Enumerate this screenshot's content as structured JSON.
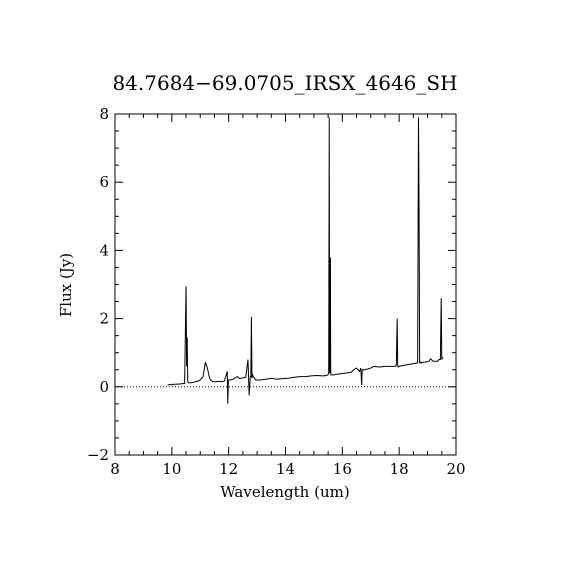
{
  "chart_data": {
    "type": "line",
    "title": "84.7684−69.0705_IRSX_4646_SH",
    "xlabel": "Wavelength (um)",
    "ylabel": "Flux (Jy)",
    "xlim": [
      8,
      20
    ],
    "ylim": [
      -2,
      8
    ],
    "x_ticks": [
      8,
      10,
      12,
      14,
      16,
      18,
      20
    ],
    "y_ticks": [
      -2,
      0,
      2,
      4,
      6,
      8
    ],
    "x_tick_labels": [
      "8",
      "10",
      "12",
      "14",
      "16",
      "18",
      "20"
    ],
    "y_tick_labels": [
      "−2",
      "0",
      "2",
      "4",
      "6",
      "8"
    ],
    "zero_line": true,
    "grid": false,
    "line_color": "#000000",
    "series": [
      {
        "x": [
          9.85,
          9.95,
          10.05,
          10.15,
          10.25,
          10.35,
          10.45,
          10.5,
          10.52,
          10.54,
          10.56,
          10.6,
          10.7,
          10.8,
          10.9,
          11.0,
          11.1,
          11.18,
          11.25,
          11.3,
          11.35,
          11.45,
          11.55,
          11.65,
          11.75,
          11.85,
          11.95,
          11.97,
          11.99,
          12.05,
          12.15,
          12.3,
          12.37,
          12.45,
          12.6,
          12.68,
          12.72,
          12.76,
          12.78,
          12.8,
          12.82,
          12.84,
          12.88,
          12.95,
          13.1,
          13.3,
          13.5,
          13.7,
          13.9,
          14.1,
          14.3,
          14.5,
          14.7,
          14.9,
          15.1,
          15.3,
          15.45,
          15.52,
          15.54,
          15.55,
          15.56,
          15.58,
          15.59,
          15.6,
          15.62,
          15.7,
          15.9,
          16.1,
          16.3,
          16.4,
          16.5,
          16.6,
          16.65,
          16.68,
          16.7,
          16.8,
          17.0,
          17.1,
          17.3,
          17.5,
          17.7,
          17.85,
          17.9,
          17.93,
          17.95,
          17.98,
          18.0,
          18.1,
          18.3,
          18.5,
          18.65,
          18.68,
          18.7,
          18.72,
          18.74,
          18.76,
          18.78,
          18.8,
          18.9,
          19.05,
          19.1,
          19.2,
          19.35,
          19.4,
          19.45,
          19.48,
          19.5,
          19.52,
          19.55
        ],
        "y": [
          0.05,
          0.07,
          0.07,
          0.08,
          0.08,
          0.09,
          0.1,
          2.95,
          0.6,
          1.45,
          0.15,
          0.12,
          0.12,
          0.14,
          0.16,
          0.2,
          0.3,
          0.72,
          0.55,
          0.35,
          0.2,
          0.15,
          0.15,
          0.16,
          0.15,
          0.17,
          0.45,
          -0.5,
          0.2,
          0.2,
          0.22,
          0.3,
          0.25,
          0.25,
          0.28,
          0.8,
          -0.25,
          0.3,
          0.3,
          2.05,
          0.25,
          0.35,
          0.28,
          0.2,
          0.2,
          0.22,
          0.25,
          0.22,
          0.24,
          0.25,
          0.28,
          0.3,
          0.3,
          0.32,
          0.33,
          0.32,
          0.33,
          0.38,
          7.9,
          0.55,
          0.4,
          3.8,
          0.45,
          0.35,
          0.35,
          0.35,
          0.38,
          0.4,
          0.42,
          0.5,
          0.55,
          0.45,
          0.55,
          0.05,
          0.5,
          0.5,
          0.55,
          0.6,
          0.58,
          0.6,
          0.6,
          0.6,
          0.62,
          2.0,
          0.6,
          0.58,
          0.6,
          0.62,
          0.65,
          0.68,
          0.7,
          7.9,
          5.3,
          0.7,
          0.7,
          0.72,
          0.7,
          0.72,
          0.72,
          0.75,
          0.82,
          0.75,
          0.75,
          0.8,
          0.8,
          2.6,
          0.8,
          0.85,
          0.85
        ]
      }
    ]
  }
}
